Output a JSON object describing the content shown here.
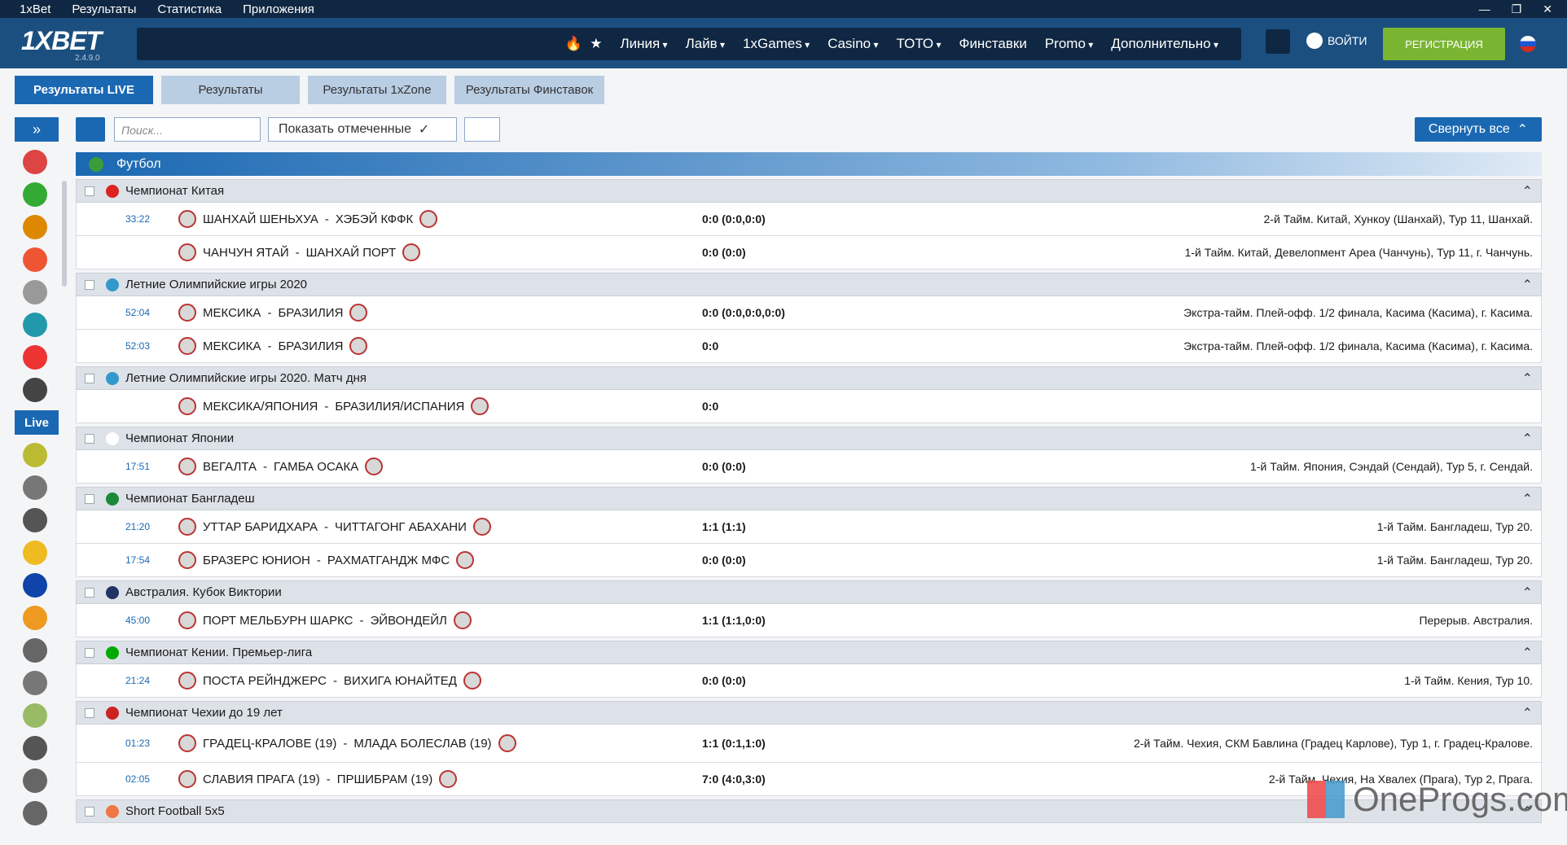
{
  "menubar": {
    "items": [
      "1xBet",
      "Результаты",
      "Статистика",
      "Приложения"
    ]
  },
  "header": {
    "logo": "1XBET",
    "version": "2.4.9.0",
    "nav": [
      "Линия",
      "Лайв",
      "1xGames",
      "Casino",
      "ТОТО",
      "Финставки",
      "Promo",
      "Дополнительно"
    ],
    "login": "ВОЙТИ",
    "register": "РЕГИСТРАЦИЯ"
  },
  "tabs": [
    "Результаты LIVE",
    "Результаты",
    "Результаты 1xZone",
    "Результаты Финставок"
  ],
  "toolbar": {
    "search_placeholder": "Поиск...",
    "show_marked": "Показать отмеченные",
    "collapse_all": "Свернуть все"
  },
  "sidebar": {
    "live": "Live"
  },
  "sport": "Футбол",
  "leagues": [
    {
      "name": "Чемпионат Китая",
      "matches": [
        {
          "time": "33:22",
          "home": "ШАНХАЙ ШЕНЬХУА",
          "away": "ХЭБЭЙ КФФК",
          "score": "0:0 (0:0,0:0)",
          "info": "2-й Тайм. Китай, Хункоу (Шанхай), Тур 11, Шанхай."
        },
        {
          "time": null,
          "home": "ЧАНЧУН ЯТАЙ",
          "away": "ШАНХАЙ ПОРТ",
          "score": "0:0 (0:0)",
          "info": "1-й Тайм. Китай, Девелопмент Ареа (Чанчунь), Тур 11, г. Чанчунь."
        }
      ]
    },
    {
      "name": "Летние Олимпийские игры 2020",
      "matches": [
        {
          "time": "52:04",
          "home": "МЕКСИКА",
          "away": "БРАЗИЛИЯ",
          "score": "0:0 (0:0,0:0,0:0)",
          "info": "Экстра-тайм. Плей-офф. 1/2 финала, Касима (Касима), г. Касима."
        },
        {
          "time": "52:03",
          "home": "МЕКСИКА",
          "away": "БРАЗИЛИЯ",
          "score": "0:0",
          "info": "Экстра-тайм. Плей-офф. 1/2 финала, Касима (Касима), г. Касима."
        }
      ]
    },
    {
      "name": "Летние Олимпийские игры 2020. Матч дня",
      "matches": [
        {
          "time": null,
          "home": "МЕКСИКА/ЯПОНИЯ",
          "away": "БРАЗИЛИЯ/ИСПАНИЯ",
          "score": "0:0",
          "info": null
        }
      ]
    },
    {
      "name": "Чемпионат Японии",
      "matches": [
        {
          "time": "17:51",
          "home": "ВЕГАЛТА",
          "away": "ГАМБА ОСАКА",
          "score": "0:0 (0:0)",
          "info": "1-й Тайм. Япония, Сэндай (Сендай), Тур 5, г. Сендай."
        }
      ]
    },
    {
      "name": "Чемпионат Бангладеш",
      "matches": [
        {
          "time": "21:20",
          "home": "УТТАР БАРИДХАРА",
          "away": "ЧИТТАГОНГ АБАХАНИ",
          "score": "1:1 (1:1)",
          "info": "1-й Тайм. Бангладеш, Тур 20."
        },
        {
          "time": "17:54",
          "home": "БРАЗЕРС ЮНИОН",
          "away": "РАХМАТГАНДЖ МФС",
          "score": "0:0 (0:0)",
          "info": "1-й Тайм. Бангладеш, Тур 20."
        }
      ]
    },
    {
      "name": "Австралия. Кубок Виктории",
      "matches": [
        {
          "time": "45:00",
          "home": "ПОРТ МЕЛЬБУРН ШАРКС",
          "away": "ЭЙВОНДЕЙЛ",
          "score": "1:1 (1:1,0:0)",
          "info": "Перерыв. Австралия."
        }
      ]
    },
    {
      "name": "Чемпионат Кении. Премьер-лига",
      "matches": [
        {
          "time": "21:24",
          "home": "ПОСТА РЕЙНДЖЕРС",
          "away": "ВИХИГА ЮНАЙТЕД",
          "score": "0:0 (0:0)",
          "info": "1-й Тайм. Кения, Тур 10."
        }
      ]
    },
    {
      "name": "Чемпионат Чехии до 19 лет",
      "matches": [
        {
          "time": "01:23",
          "home": "ГРАДЕЦ-КРАЛОВЕ (19)",
          "away": "МЛАДА БОЛЕСЛАВ (19)",
          "score": "1:1 (0:1,1:0)",
          "info": "2-й Тайм. Чехия, СКМ Бавлина (Градец Карлове), Тур 1, г. Градец-Кралове."
        },
        {
          "time": "02:05",
          "home": "СЛАВИЯ ПРАГА (19)",
          "away": "ПРШИБРАМ (19)",
          "score": "7:0 (4:0,3:0)",
          "info": "2-й Тайм. Чехия, На Хвалех (Прага), Тур 2, Прага."
        }
      ]
    },
    {
      "name": "Short Football 5x5",
      "matches": []
    }
  ],
  "watermark": "OneProgs.com"
}
